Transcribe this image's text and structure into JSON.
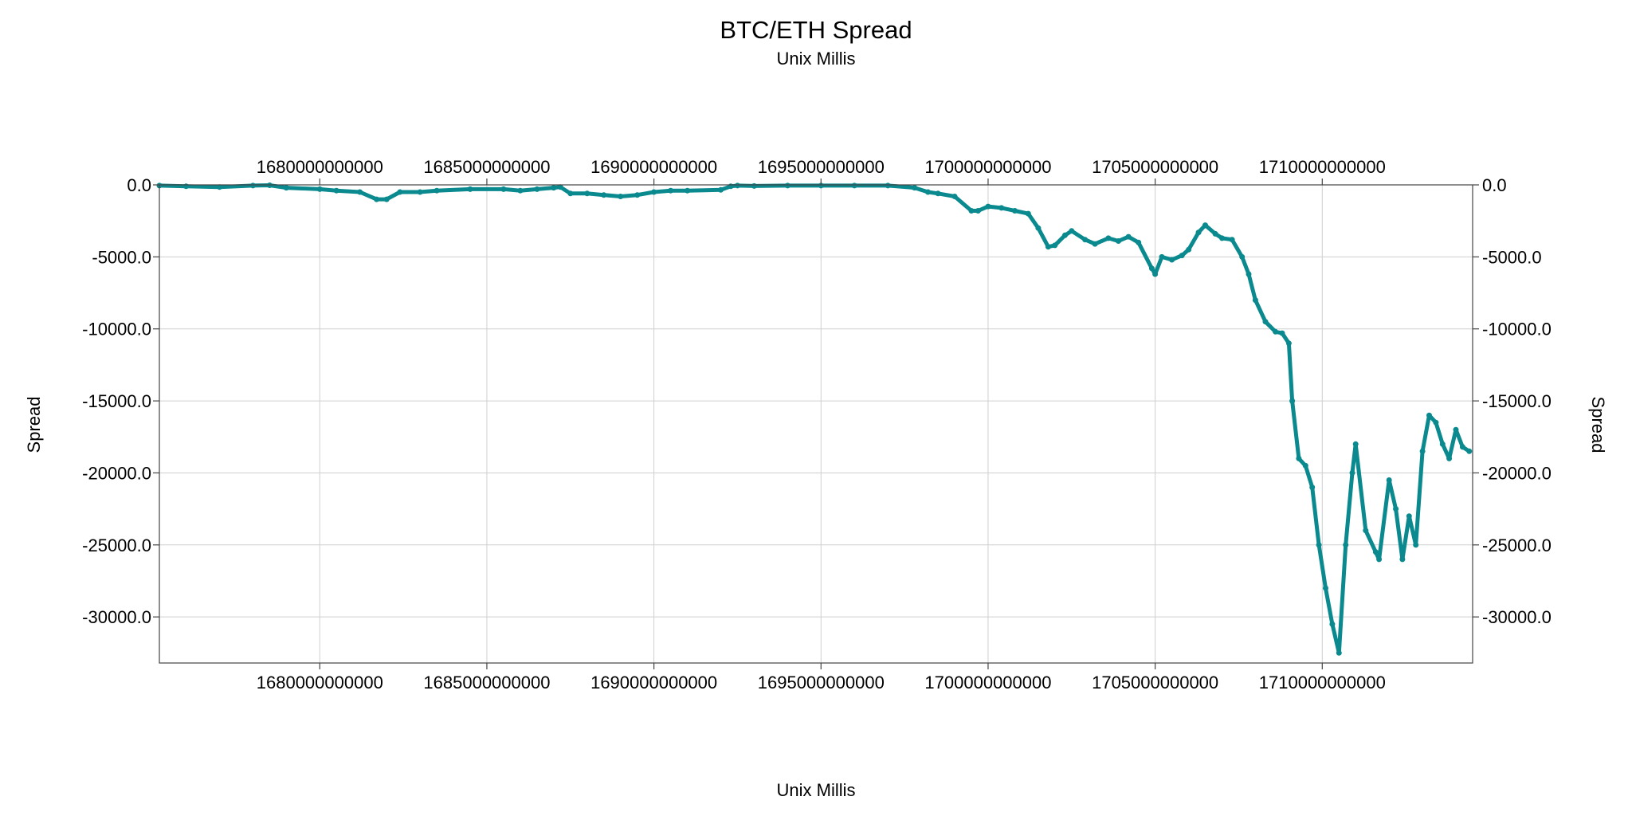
{
  "chart_data": {
    "type": "scatter",
    "title": "BTC/ETH Spread",
    "subtitle": "Unix Millis",
    "xlabel": "Unix Millis",
    "ylabel": "Spread",
    "xlim": [
      1675200000000,
      1714500000000
    ],
    "ylim": [
      -33200,
      0
    ],
    "x_ticks": [
      1680000000000,
      1685000000000,
      1690000000000,
      1695000000000,
      1700000000000,
      1705000000000,
      1710000000000
    ],
    "x_tick_labels": [
      "1680000000000",
      "1685000000000",
      "1690000000000",
      "1695000000000",
      "1700000000000",
      "1705000000000",
      "1710000000000"
    ],
    "y_ticks": [
      0,
      -5000,
      -10000,
      -15000,
      -20000,
      -25000,
      -30000
    ],
    "y_tick_labels": [
      "0.0",
      "-5000.0",
      "-10000.0",
      "-15000.0",
      "-20000.0",
      "-25000.0",
      "-30000.0"
    ],
    "grid": true,
    "colors": {
      "series": "#0a8a8f"
    },
    "series": [
      {
        "x": [
          1675200000000,
          1676000000000,
          1677000000000,
          1678000000000,
          1678500000000,
          1679000000000,
          1680000000000,
          1680500000000,
          1681200000000,
          1681700000000,
          1682000000000,
          1682400000000,
          1683000000000,
          1683500000000,
          1684500000000,
          1685500000000,
          1686000000000,
          1686500000000,
          1687000000000,
          1687200000000,
          1687500000000,
          1688000000000,
          1688500000000,
          1689000000000,
          1689500000000,
          1690000000000,
          1690500000000,
          1691000000000,
          1692000000000,
          1692300000000,
          1692500000000,
          1693000000000,
          1694000000000,
          1695000000000,
          1696000000000,
          1697000000000,
          1697800000000,
          1698200000000,
          1698500000000,
          1699000000000,
          1699500000000,
          1699700000000,
          1700000000000,
          1700400000000,
          1700800000000,
          1701200000000,
          1701500000000,
          1701800000000,
          1702000000000,
          1702300000000,
          1702500000000,
          1702900000000,
          1703200000000,
          1703600000000,
          1703900000000,
          1704200000000,
          1704500000000,
          1704900000000,
          1705000000000,
          1705200000000,
          1705500000000,
          1705800000000,
          1706000000000,
          1706300000000,
          1706500000000,
          1706800000000,
          1707000000000,
          1707300000000,
          1707600000000,
          1707800000000,
          1708000000000,
          1708300000000,
          1708600000000,
          1708800000000,
          1709000000000,
          1709100000000,
          1709300000000,
          1709500000000,
          1709700000000,
          1709900000000,
          1710100000000,
          1710300000000,
          1710500000000,
          1710700000000,
          1710900000000,
          1711000000000,
          1711300000000,
          1711600000000,
          1711700000000,
          1712000000000,
          1712200000000,
          1712400000000,
          1712600000000,
          1712800000000,
          1713000000000,
          1713200000000,
          1713400000000,
          1713600000000,
          1713800000000,
          1714000000000,
          1714200000000,
          1714400000000
        ],
        "y": [
          -50,
          -100,
          -150,
          -50,
          -30,
          -200,
          -300,
          -400,
          -500,
          -1000,
          -1000,
          -500,
          -500,
          -400,
          -300,
          -300,
          -400,
          -300,
          -200,
          -150,
          -600,
          -600,
          -700,
          -800,
          -700,
          -500,
          -400,
          -400,
          -350,
          -100,
          -50,
          -80,
          -50,
          -50,
          -50,
          -50,
          -200,
          -500,
          -600,
          -800,
          -1800,
          -1800,
          -1500,
          -1600,
          -1800,
          -2000,
          -3000,
          -4300,
          -4200,
          -3500,
          -3200,
          -3800,
          -4100,
          -3700,
          -3900,
          -3600,
          -4000,
          -5800,
          -6200,
          -5000,
          -5200,
          -4900,
          -4500,
          -3300,
          -2800,
          -3400,
          -3700,
          -3800,
          -5000,
          -6200,
          -8000,
          -9500,
          -10200,
          -10300,
          -11000,
          -15000,
          -19000,
          -19500,
          -21000,
          -25000,
          -28000,
          -30500,
          -32500,
          -25000,
          -20000,
          -18000,
          -24000,
          -25500,
          -26000,
          -20500,
          -22500,
          -26000,
          -23000,
          -25000,
          -18500,
          -16000,
          -16500,
          -18000,
          -19000,
          -17000,
          -18200,
          -18500
        ]
      }
    ]
  }
}
